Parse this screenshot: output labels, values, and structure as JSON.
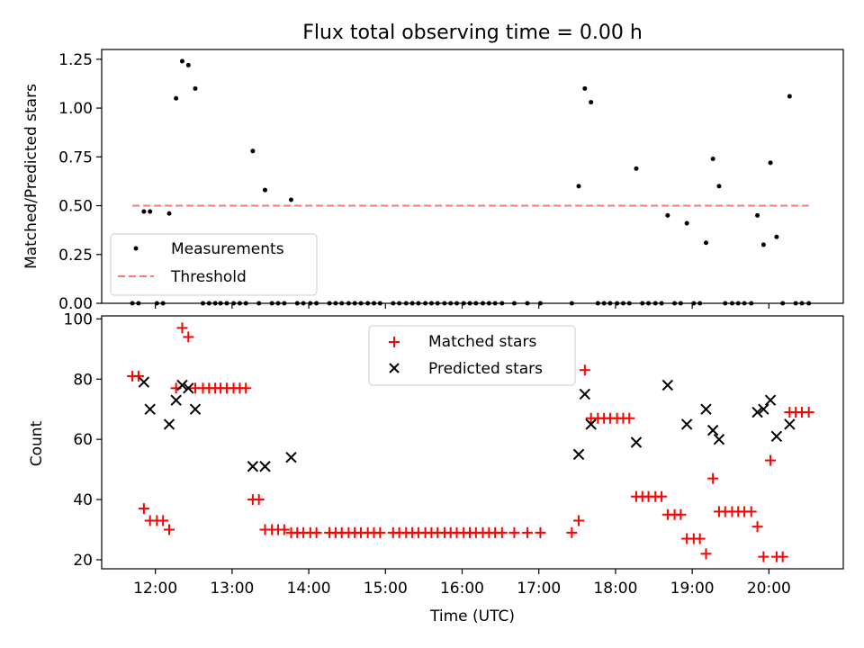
{
  "chart_data": [
    {
      "type": "scatter",
      "title": "Flux total observing time = 0.00 h",
      "xlabel": "",
      "ylabel": "Matched/Predicted stars",
      "xlim": [
        11.3,
        20.97
      ],
      "ylim": [
        0,
        1.3
      ],
      "yticks": [
        0,
        0.25,
        0.5,
        0.75,
        1.0,
        1.25
      ],
      "ytick_labels": [
        "0.00",
        "0.25",
        "0.50",
        "0.75",
        "1.00",
        "1.25"
      ],
      "grid": false,
      "legend_position": "lower-left",
      "series": [
        {
          "name": "Measurements",
          "kind": "dot",
          "color": "#000000",
          "points": [
            [
              11.7,
              0
            ],
            [
              11.78,
              0
            ],
            [
              11.85,
              0.47
            ],
            [
              11.93,
              0.47
            ],
            [
              12.02,
              0
            ],
            [
              12.1,
              0
            ],
            [
              12.18,
              0.46
            ],
            [
              12.27,
              1.05
            ],
            [
              12.35,
              1.24
            ],
            [
              12.43,
              1.22
            ],
            [
              12.52,
              1.1
            ],
            [
              12.62,
              0
            ],
            [
              12.7,
              0
            ],
            [
              12.78,
              0
            ],
            [
              12.85,
              0
            ],
            [
              12.93,
              0
            ],
            [
              13.02,
              0
            ],
            [
              13.1,
              0
            ],
            [
              13.18,
              0
            ],
            [
              13.27,
              0.78
            ],
            [
              13.35,
              0
            ],
            [
              13.43,
              0.58
            ],
            [
              13.52,
              0
            ],
            [
              13.6,
              0
            ],
            [
              13.68,
              0
            ],
            [
              13.77,
              0.53
            ],
            [
              13.85,
              0
            ],
            [
              13.93,
              0
            ],
            [
              14.02,
              0
            ],
            [
              14.1,
              0
            ],
            [
              14.27,
              0
            ],
            [
              14.35,
              0
            ],
            [
              14.43,
              0
            ],
            [
              14.52,
              0
            ],
            [
              14.6,
              0
            ],
            [
              14.68,
              0
            ],
            [
              14.77,
              0
            ],
            [
              14.85,
              0
            ],
            [
              14.93,
              0
            ],
            [
              15.1,
              0
            ],
            [
              15.18,
              0
            ],
            [
              15.27,
              0
            ],
            [
              15.35,
              0
            ],
            [
              15.43,
              0
            ],
            [
              15.52,
              0
            ],
            [
              15.6,
              0
            ],
            [
              15.68,
              0
            ],
            [
              15.77,
              0
            ],
            [
              15.85,
              0
            ],
            [
              15.93,
              0
            ],
            [
              16.02,
              0
            ],
            [
              16.1,
              0
            ],
            [
              16.18,
              0
            ],
            [
              16.27,
              0
            ],
            [
              16.35,
              0
            ],
            [
              16.43,
              0
            ],
            [
              16.52,
              0
            ],
            [
              16.68,
              0
            ],
            [
              16.85,
              0
            ],
            [
              17.02,
              0
            ],
            [
              17.43,
              0
            ],
            [
              17.52,
              0.6
            ],
            [
              17.6,
              1.1
            ],
            [
              17.68,
              1.03
            ],
            [
              17.77,
              0
            ],
            [
              17.85,
              0
            ],
            [
              17.93,
              0
            ],
            [
              18.02,
              0
            ],
            [
              18.1,
              0
            ],
            [
              18.18,
              0
            ],
            [
              18.27,
              0.69
            ],
            [
              18.35,
              0
            ],
            [
              18.43,
              0
            ],
            [
              18.52,
              0
            ],
            [
              18.6,
              0
            ],
            [
              18.68,
              0.45
            ],
            [
              18.77,
              0
            ],
            [
              18.85,
              0
            ],
            [
              18.93,
              0.41
            ],
            [
              19.02,
              0
            ],
            [
              19.1,
              0
            ],
            [
              19.18,
              0.31
            ],
            [
              19.27,
              0.74
            ],
            [
              19.35,
              0.6
            ],
            [
              19.43,
              0
            ],
            [
              19.52,
              0
            ],
            [
              19.6,
              0
            ],
            [
              19.68,
              0
            ],
            [
              19.77,
              0
            ],
            [
              19.85,
              0.45
            ],
            [
              19.93,
              0.3
            ],
            [
              20.02,
              0.72
            ],
            [
              20.1,
              0.34
            ],
            [
              20.18,
              0
            ],
            [
              20.27,
              1.06
            ],
            [
              20.35,
              0
            ],
            [
              20.43,
              0
            ],
            [
              20.52,
              0
            ]
          ]
        },
        {
          "name": "Threshold",
          "kind": "dashed-line",
          "color": "#ff7777",
          "x": [
            11.7,
            20.52
          ],
          "y": [
            0.5,
            0.5
          ]
        }
      ]
    },
    {
      "type": "scatter",
      "title": "",
      "xlabel": "Time (UTC)",
      "ylabel": "Count",
      "xlim": [
        11.3,
        20.97
      ],
      "ylim": [
        17,
        101
      ],
      "xticks": [
        12,
        13,
        14,
        15,
        16,
        17,
        18,
        19,
        20
      ],
      "xtick_labels": [
        "12:00",
        "13:00",
        "14:00",
        "15:00",
        "16:00",
        "17:00",
        "18:00",
        "19:00",
        "20:00"
      ],
      "yticks": [
        20,
        40,
        60,
        80,
        100
      ],
      "ytick_labels": [
        "20",
        "40",
        "60",
        "80",
        "100"
      ],
      "grid": false,
      "legend_position": "top-center",
      "series": [
        {
          "name": "Matched stars",
          "kind": "plus",
          "color": "#ff0000",
          "points": [
            [
              11.7,
              81
            ],
            [
              11.78,
              81
            ],
            [
              11.85,
              37
            ],
            [
              11.93,
              33
            ],
            [
              12.02,
              33
            ],
            [
              12.1,
              33
            ],
            [
              12.18,
              30
            ],
            [
              12.27,
              77
            ],
            [
              12.35,
              97
            ],
            [
              12.43,
              94
            ],
            [
              12.52,
              77
            ],
            [
              12.62,
              77
            ],
            [
              12.7,
              77
            ],
            [
              12.78,
              77
            ],
            [
              12.85,
              77
            ],
            [
              12.93,
              77
            ],
            [
              13.02,
              77
            ],
            [
              13.1,
              77
            ],
            [
              13.18,
              77
            ],
            [
              13.27,
              40
            ],
            [
              13.35,
              40
            ],
            [
              13.43,
              30
            ],
            [
              13.52,
              30
            ],
            [
              13.6,
              30
            ],
            [
              13.68,
              30
            ],
            [
              13.77,
              29
            ],
            [
              13.85,
              29
            ],
            [
              13.93,
              29
            ],
            [
              14.02,
              29
            ],
            [
              14.1,
              29
            ],
            [
              14.27,
              29
            ],
            [
              14.35,
              29
            ],
            [
              14.43,
              29
            ],
            [
              14.52,
              29
            ],
            [
              14.6,
              29
            ],
            [
              14.68,
              29
            ],
            [
              14.77,
              29
            ],
            [
              14.85,
              29
            ],
            [
              14.93,
              29
            ],
            [
              15.1,
              29
            ],
            [
              15.18,
              29
            ],
            [
              15.27,
              29
            ],
            [
              15.35,
              29
            ],
            [
              15.43,
              29
            ],
            [
              15.52,
              29
            ],
            [
              15.6,
              29
            ],
            [
              15.68,
              29
            ],
            [
              15.77,
              29
            ],
            [
              15.85,
              29
            ],
            [
              15.93,
              29
            ],
            [
              16.02,
              29
            ],
            [
              16.1,
              29
            ],
            [
              16.18,
              29
            ],
            [
              16.27,
              29
            ],
            [
              16.35,
              29
            ],
            [
              16.43,
              29
            ],
            [
              16.52,
              29
            ],
            [
              16.68,
              29
            ],
            [
              16.85,
              29
            ],
            [
              17.02,
              29
            ],
            [
              17.43,
              29
            ],
            [
              17.52,
              33
            ],
            [
              17.6,
              83
            ],
            [
              17.68,
              67
            ],
            [
              17.77,
              67
            ],
            [
              17.85,
              67
            ],
            [
              17.93,
              67
            ],
            [
              18.02,
              67
            ],
            [
              18.1,
              67
            ],
            [
              18.18,
              67
            ],
            [
              18.27,
              41
            ],
            [
              18.35,
              41
            ],
            [
              18.43,
              41
            ],
            [
              18.52,
              41
            ],
            [
              18.6,
              41
            ],
            [
              18.68,
              35
            ],
            [
              18.77,
              35
            ],
            [
              18.85,
              35
            ],
            [
              18.93,
              27
            ],
            [
              19.02,
              27
            ],
            [
              19.1,
              27
            ],
            [
              19.18,
              22
            ],
            [
              19.27,
              47
            ],
            [
              19.35,
              36
            ],
            [
              19.43,
              36
            ],
            [
              19.52,
              36
            ],
            [
              19.6,
              36
            ],
            [
              19.68,
              36
            ],
            [
              19.77,
              36
            ],
            [
              19.85,
              31
            ],
            [
              19.93,
              21
            ],
            [
              20.02,
              53
            ],
            [
              20.1,
              21
            ],
            [
              20.18,
              21
            ],
            [
              20.27,
              69
            ],
            [
              20.35,
              69
            ],
            [
              20.43,
              69
            ],
            [
              20.52,
              69
            ]
          ]
        },
        {
          "name": "Predicted stars",
          "kind": "x",
          "color": "#000000",
          "points": [
            [
              11.85,
              79
            ],
            [
              11.93,
              70
            ],
            [
              12.18,
              65
            ],
            [
              12.27,
              73
            ],
            [
              12.35,
              78
            ],
            [
              12.43,
              77
            ],
            [
              12.52,
              70
            ],
            [
              13.27,
              51
            ],
            [
              13.43,
              51
            ],
            [
              13.77,
              54
            ],
            [
              17.52,
              55
            ],
            [
              17.6,
              75
            ],
            [
              17.68,
              65
            ],
            [
              18.27,
              59
            ],
            [
              18.68,
              78
            ],
            [
              18.93,
              65
            ],
            [
              19.18,
              70
            ],
            [
              19.27,
              63
            ],
            [
              19.35,
              60
            ],
            [
              19.85,
              69
            ],
            [
              19.93,
              70
            ],
            [
              20.02,
              73
            ],
            [
              20.1,
              61
            ],
            [
              20.27,
              65
            ]
          ]
        }
      ]
    }
  ]
}
